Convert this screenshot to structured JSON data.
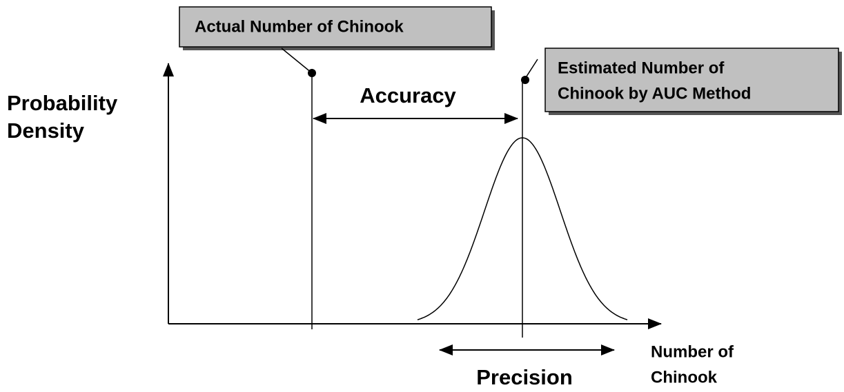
{
  "labels": {
    "actual": "Actual Number of Chinook",
    "estimated": [
      "Estimated Number of",
      "Chinook by AUC Method"
    ],
    "accuracy": "Accuracy",
    "precision": "Precision",
    "y_axis": [
      "Probability",
      "Density"
    ],
    "x_axis": [
      "Number of",
      "Chinook"
    ]
  }
}
